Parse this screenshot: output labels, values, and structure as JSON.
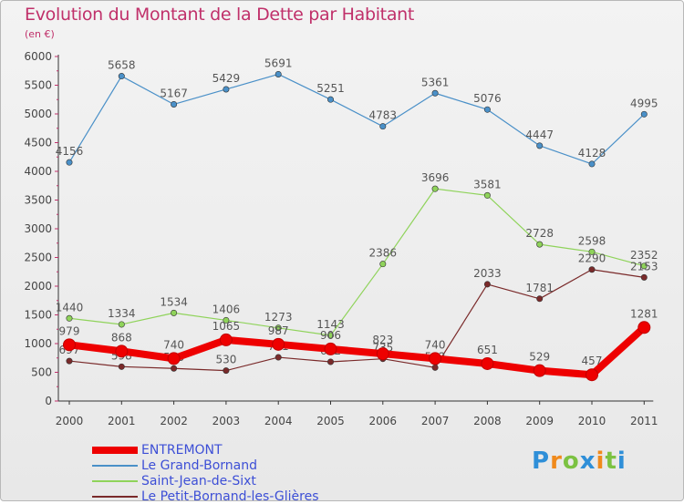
{
  "title": "Evolution du Montant de la Dette par Habitant",
  "subtitle": "(en €)",
  "logo": "Proxiti",
  "chart_data": {
    "type": "line",
    "title": "Evolution du Montant de la Dette par Habitant",
    "subtitle": "(en €)",
    "xlabel": "",
    "ylabel": "",
    "ylim": [
      0,
      6000
    ],
    "yticks": [
      0,
      500,
      1000,
      1500,
      2000,
      2500,
      3000,
      3500,
      4000,
      4500,
      5000,
      5500,
      6000
    ],
    "grid": false,
    "legend_position": "bottom-left",
    "x": [
      "2000",
      "2001",
      "2002",
      "2003",
      "2004",
      "2005",
      "2006",
      "2007",
      "2008",
      "2009",
      "2010",
      "2011"
    ],
    "series": [
      {
        "name": "Le Grand-Bornand",
        "color": "#4a90c8",
        "values": [
          4156,
          5658,
          5167,
          5429,
          5691,
          5251,
          4783,
          5361,
          5076,
          4447,
          4128,
          4995
        ]
      },
      {
        "name": "Saint-Jean-de-Sixt",
        "color": "#8fd35a",
        "values": [
          1440,
          1334,
          1534,
          1406,
          1273,
          1143,
          2386,
          3696,
          3581,
          2728,
          2598,
          2352
        ]
      },
      {
        "name": "Le Petit-Bornand-les-Glières",
        "color": "#7a2a2a",
        "values": [
          697,
          598,
          568,
          530,
          761,
          682,
          735,
          582,
          2033,
          1781,
          2290,
          2153
        ]
      },
      {
        "name": "ENTREMONT",
        "color": "#ee0000",
        "values": [
          979,
          868,
          740,
          1065,
          987,
          906,
          823,
          740,
          651,
          529,
          457,
          1281
        ]
      }
    ]
  }
}
